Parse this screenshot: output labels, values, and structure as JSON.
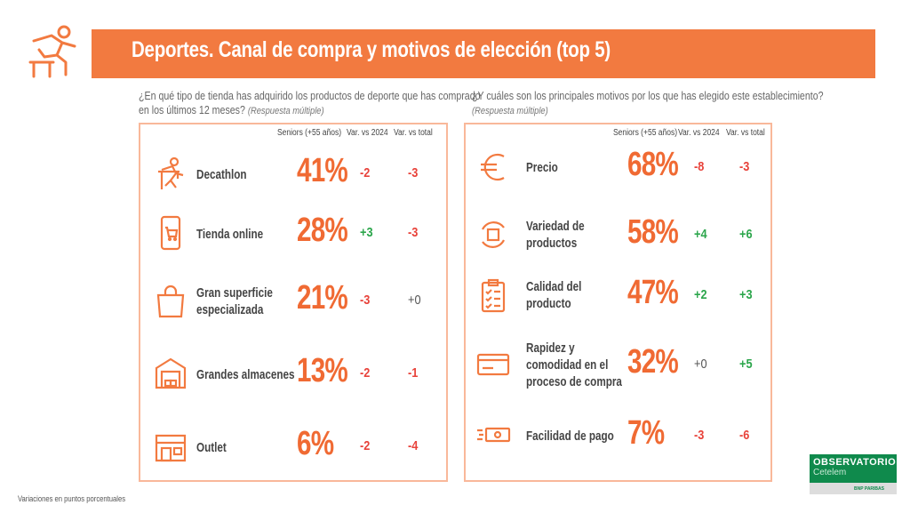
{
  "header": {
    "title": "Deportes. Canal de compra y motivos de elección (top 5)",
    "icon": "hurdler-icon"
  },
  "left": {
    "question": "¿En qué tipo de tienda has adquirido los productos de deporte que has comprado",
    "question2": "en los últimos 12 meses?",
    "note": "(Respuesta múltiple)",
    "columns": [
      "Seniors (+55 años)",
      "Var. vs 2024",
      "Var. vs total"
    ],
    "rows": [
      {
        "label": "Decathlon",
        "label2": "",
        "pct": "41%",
        "v2024": "-2",
        "vtotal": "-3",
        "icon": "runner-icon"
      },
      {
        "label": "Tienda online",
        "label2": "",
        "pct": "28%",
        "v2024": "+3",
        "vtotal": "-3",
        "icon": "phone-cart-icon"
      },
      {
        "label": "Gran superficie",
        "label2": "especializada",
        "pct": "21%",
        "v2024": "-3",
        "vtotal": "+0",
        "icon": "shopping-bag-icon"
      },
      {
        "label": "Grandes almacenes",
        "label2": "",
        "pct": "13%",
        "v2024": "-2",
        "vtotal": "-1",
        "icon": "warehouse-icon"
      },
      {
        "label": "Outlet",
        "label2": "",
        "pct": "6%",
        "v2024": "-2",
        "vtotal": "-4",
        "icon": "storefront-icon"
      }
    ]
  },
  "right": {
    "question": "¿Y cuáles son los principales motivos por los que has elegido este establecimiento?",
    "note": "(Respuesta múltiple)",
    "columns": [
      "Seniors (+55 años)",
      "Var. vs 2024",
      "Var. vs total"
    ],
    "rows": [
      {
        "label": "Precio",
        "label2": "",
        "label3": "",
        "pct": "68%",
        "v2024": "-8",
        "vtotal": "-3",
        "icon": "euro-icon"
      },
      {
        "label": "Variedad de",
        "label2": "productos",
        "label3": "",
        "pct": "58%",
        "v2024": "+4",
        "vtotal": "+6",
        "icon": "box-cycle-icon"
      },
      {
        "label": "Calidad del",
        "label2": "producto",
        "label3": "",
        "pct": "47%",
        "v2024": "+2",
        "vtotal": "+3",
        "icon": "checklist-icon"
      },
      {
        "label": "Rapidez y",
        "label2": "comodidad en el",
        "label3": "proceso de compra",
        "pct": "32%",
        "v2024": "+0",
        "vtotal": "+5",
        "icon": "card-icon"
      },
      {
        "label": "Facilidad de pago",
        "label2": "",
        "label3": "",
        "pct": "7%",
        "v2024": "-3",
        "vtotal": "-6",
        "icon": "cash-icon"
      }
    ]
  },
  "footer": "Variaciones en puntos porcentuales",
  "logo": {
    "line1": "OBSERVATORIO",
    "line2": "Cetelem",
    "line3": "BNP PARIBAS"
  },
  "colors": {
    "orange": "#f27a40",
    "neg": "#e8433b",
    "pos": "#2ca64c"
  }
}
